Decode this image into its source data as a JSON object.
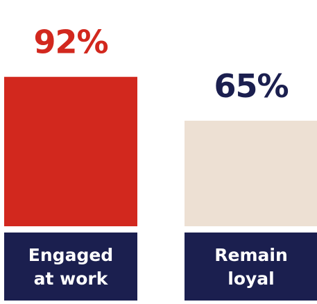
{
  "chart_data": {
    "type": "bar",
    "categories": [
      [
        "Engaged",
        "at work"
      ],
      [
        "Remain",
        "loyal"
      ]
    ],
    "values": [
      92,
      65
    ],
    "value_labels": [
      "92%",
      "65%"
    ],
    "ylim": [
      0,
      100
    ],
    "grid": false,
    "legend": "none",
    "colors": {
      "bars": [
        "#d2281e",
        "#ede0d3"
      ],
      "value_labels": [
        "#d2281e",
        "#1b1f4f"
      ],
      "label_boxes": "#1b1f4f",
      "label_text": "#ffffff"
    }
  }
}
